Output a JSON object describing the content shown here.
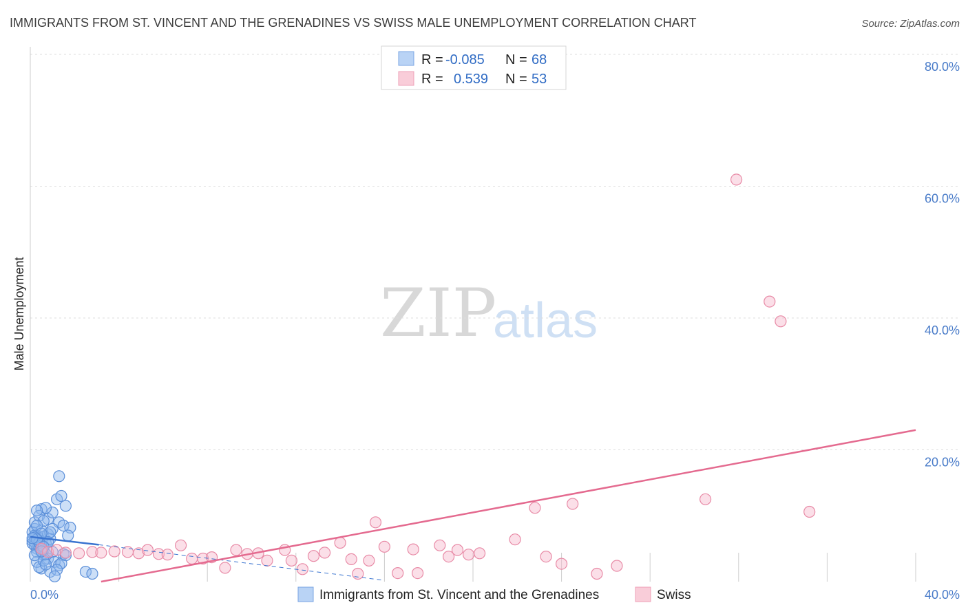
{
  "chart_data": {
    "type": "scatter",
    "title": "IMMIGRANTS FROM ST. VINCENT AND THE GRENADINES VS SWISS MALE UNEMPLOYMENT CORRELATION CHART",
    "source": "Source: ZipAtlas.com",
    "xlabel": "",
    "ylabel": "Male Unemployment",
    "xlim": [
      0,
      40
    ],
    "ylim": [
      0,
      80
    ],
    "x_ticks": [
      "0.0%",
      "40.0%"
    ],
    "y_ticks": [
      {
        "value": 80,
        "label": "80.0%"
      },
      {
        "value": 60,
        "label": "60.0%"
      },
      {
        "value": 40,
        "label": "40.0%"
      },
      {
        "value": 20,
        "label": "20.0%"
      }
    ],
    "watermark": {
      "zip": "ZIP",
      "atlas": "atlas"
    },
    "legend": [
      {
        "r_label": "R =",
        "r_value": "-0.085",
        "n_label": "N =",
        "n_value": "68"
      },
      {
        "r_label": "R =",
        "r_value": "0.539",
        "n_label": "N =",
        "n_value": "53"
      }
    ],
    "series": [
      {
        "name": "Immigrants from St. Vincent and the Grenadines",
        "color": "#8fb8ee",
        "stroke": "#5b8fd9",
        "trend": {
          "x": [
            0,
            3.1
          ],
          "y": [
            6.8,
            5.6
          ],
          "dashed_to": [
            16,
            0.2
          ],
          "color": "#3a74d0"
        },
        "points": [
          [
            0.1,
            6.2
          ],
          [
            0.2,
            5.5
          ],
          [
            0.3,
            7.0
          ],
          [
            0.2,
            8.0
          ],
          [
            0.4,
            6.5
          ],
          [
            0.5,
            7.8
          ],
          [
            0.3,
            5.0
          ],
          [
            0.6,
            6.8
          ],
          [
            0.1,
            7.5
          ],
          [
            0.2,
            6.0
          ],
          [
            0.4,
            5.2
          ],
          [
            0.5,
            6.1
          ],
          [
            0.3,
            4.5
          ],
          [
            0.7,
            5.8
          ],
          [
            0.8,
            7.2
          ],
          [
            0.6,
            4.0
          ],
          [
            0.9,
            6.5
          ],
          [
            0.2,
            9.0
          ],
          [
            0.5,
            11.0
          ],
          [
            0.4,
            10.0
          ],
          [
            0.8,
            9.5
          ],
          [
            1.0,
            10.5
          ],
          [
            1.2,
            12.5
          ],
          [
            1.3,
            9.0
          ],
          [
            1.5,
            8.5
          ],
          [
            1.6,
            11.5
          ],
          [
            1.4,
            13.0
          ],
          [
            1.3,
            16.0
          ],
          [
            1.8,
            8.2
          ],
          [
            1.7,
            7.0
          ],
          [
            1.0,
            8.0
          ],
          [
            0.9,
            7.5
          ],
          [
            0.7,
            11.2
          ],
          [
            0.3,
            10.8
          ],
          [
            0.6,
            9.2
          ],
          [
            0.2,
            7.0
          ],
          [
            0.1,
            5.8
          ],
          [
            0.4,
            6.0
          ],
          [
            0.5,
            5.5
          ],
          [
            0.6,
            4.8
          ],
          [
            0.7,
            4.2
          ],
          [
            0.8,
            3.5
          ],
          [
            1.0,
            4.5
          ],
          [
            1.1,
            3.0
          ],
          [
            1.3,
            2.5
          ],
          [
            1.4,
            2.8
          ],
          [
            0.5,
            2.0
          ],
          [
            0.9,
            1.5
          ],
          [
            1.2,
            1.8
          ],
          [
            2.5,
            1.5
          ],
          [
            2.8,
            1.2
          ],
          [
            1.1,
            0.8
          ],
          [
            0.3,
            3.0
          ],
          [
            0.4,
            2.2
          ],
          [
            0.2,
            4.0
          ],
          [
            0.6,
            3.2
          ],
          [
            0.7,
            2.6
          ],
          [
            1.5,
            4.2
          ],
          [
            1.6,
            4.0
          ],
          [
            0.8,
            6.0
          ],
          [
            0.3,
            8.5
          ],
          [
            0.5,
            7.3
          ],
          [
            0.2,
            6.7
          ],
          [
            0.4,
            5.9
          ],
          [
            0.3,
            6.4
          ],
          [
            0.1,
            6.6
          ],
          [
            0.6,
            5.3
          ],
          [
            0.5,
            4.6
          ]
        ]
      },
      {
        "name": "Swiss",
        "color": "#f6b9cb",
        "stroke": "#e88aa6",
        "trend": {
          "x": [
            3.2,
            40
          ],
          "y": [
            0.0,
            23.0
          ],
          "color": "#e46a8f"
        },
        "points": [
          [
            0.5,
            5.0
          ],
          [
            0.8,
            4.5
          ],
          [
            1.2,
            4.8
          ],
          [
            1.6,
            4.4
          ],
          [
            2.2,
            4.3
          ],
          [
            2.8,
            4.5
          ],
          [
            3.2,
            4.4
          ],
          [
            3.8,
            4.6
          ],
          [
            4.4,
            4.5
          ],
          [
            4.9,
            4.3
          ],
          [
            5.3,
            4.8
          ],
          [
            5.8,
            4.2
          ],
          [
            6.2,
            4.1
          ],
          [
            6.8,
            5.5
          ],
          [
            7.3,
            3.5
          ],
          [
            7.8,
            3.5
          ],
          [
            8.2,
            3.7
          ],
          [
            8.8,
            2.1
          ],
          [
            9.3,
            4.8
          ],
          [
            9.8,
            4.2
          ],
          [
            10.3,
            4.3
          ],
          [
            10.7,
            3.2
          ],
          [
            11.5,
            4.8
          ],
          [
            11.8,
            3.2
          ],
          [
            12.3,
            1.9
          ],
          [
            12.8,
            3.9
          ],
          [
            13.3,
            4.4
          ],
          [
            14.0,
            5.9
          ],
          [
            14.5,
            3.4
          ],
          [
            14.8,
            1.2
          ],
          [
            15.3,
            3.2
          ],
          [
            15.6,
            9.0
          ],
          [
            16.0,
            5.3
          ],
          [
            16.6,
            1.3
          ],
          [
            17.3,
            4.9
          ],
          [
            17.5,
            1.3
          ],
          [
            18.5,
            5.5
          ],
          [
            18.9,
            3.8
          ],
          [
            19.3,
            4.8
          ],
          [
            19.8,
            4.1
          ],
          [
            20.3,
            4.3
          ],
          [
            21.9,
            6.4
          ],
          [
            22.8,
            11.2
          ],
          [
            23.3,
            3.8
          ],
          [
            24.0,
            2.7
          ],
          [
            24.5,
            11.8
          ],
          [
            25.6,
            1.2
          ],
          [
            26.5,
            2.4
          ],
          [
            30.5,
            12.5
          ],
          [
            31.9,
            61.0
          ],
          [
            33.4,
            42.5
          ],
          [
            33.9,
            39.5
          ],
          [
            35.2,
            10.6
          ]
        ]
      }
    ]
  }
}
